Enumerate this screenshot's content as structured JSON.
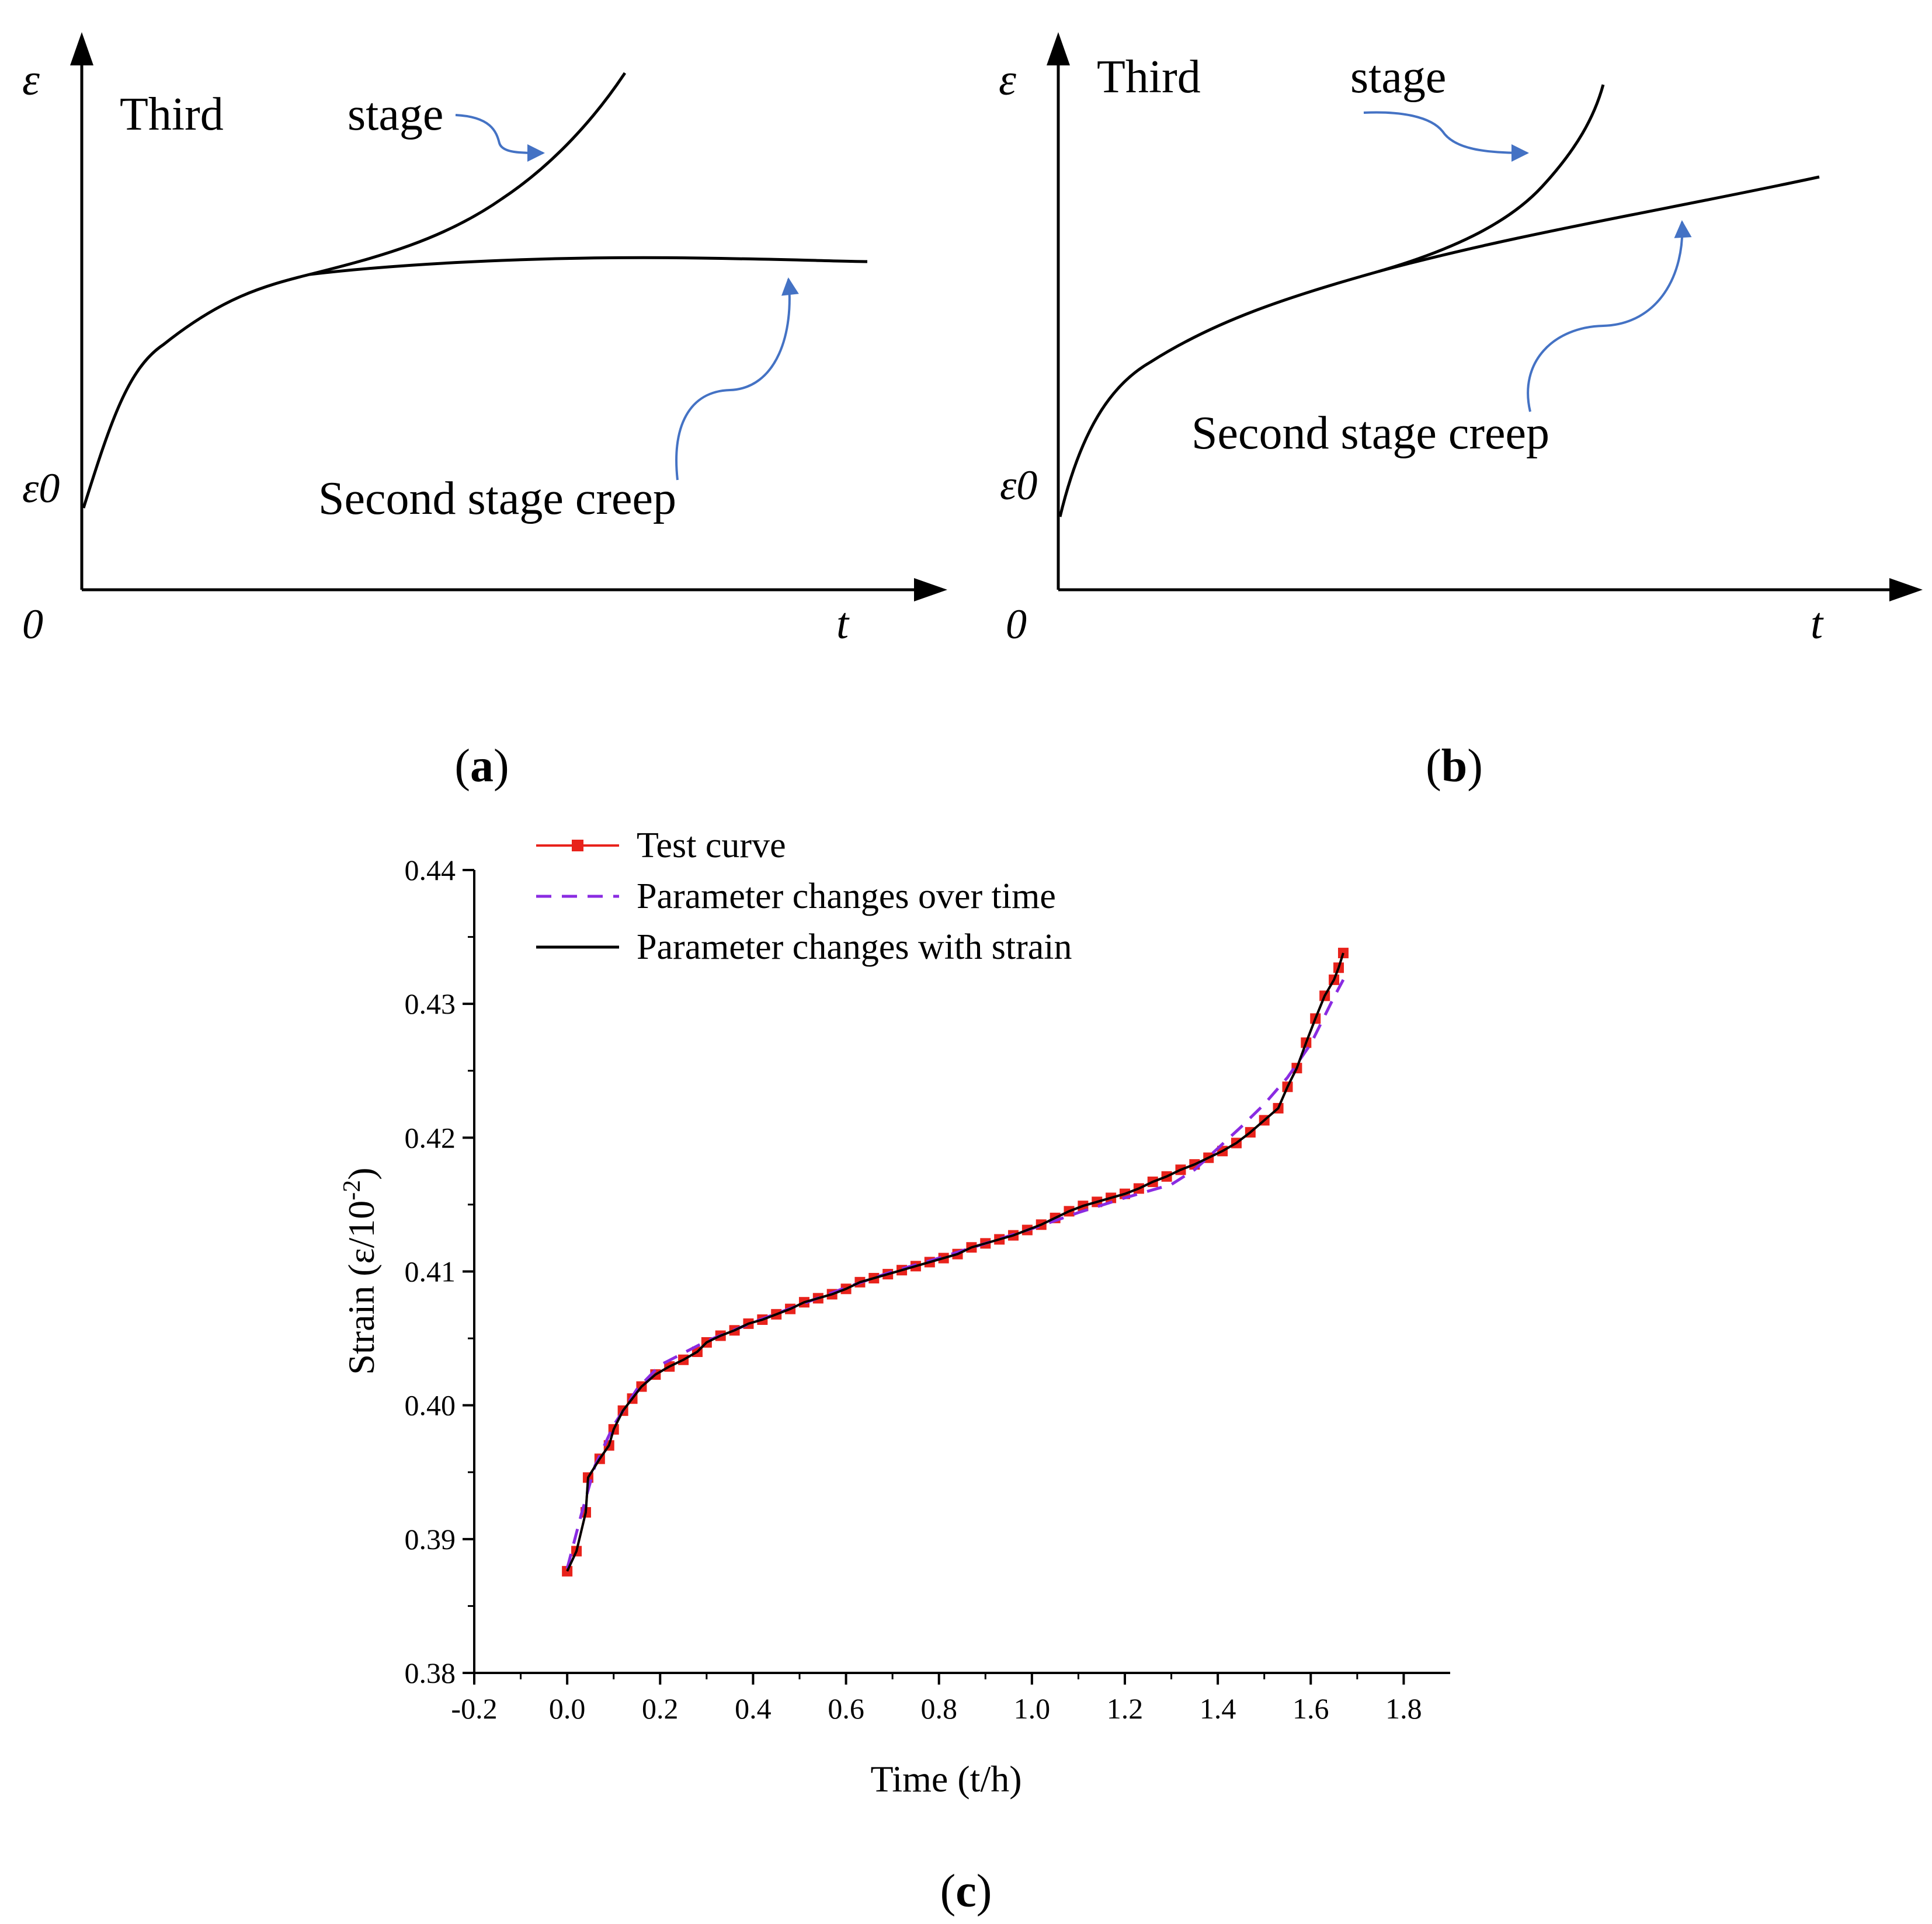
{
  "colors": {
    "axis": "#000000",
    "curve": "#000000",
    "arrow": "#4472C4",
    "test_curve": "#E8221B",
    "param_time": "#8A2BE2",
    "param_strain": "#000000"
  },
  "panel_a": {
    "caption_paren_open": "(",
    "caption_letter": "a",
    "caption_paren_close": ")",
    "y_symbol": "ε",
    "y0_symbol": "ε0",
    "origin": "0",
    "x_symbol": "t",
    "label_third": "Third",
    "label_stage": "stage",
    "label_second": "Second stage creep"
  },
  "panel_b": {
    "caption_paren_open": "(",
    "caption_letter": "b",
    "caption_paren_close": ")",
    "y_symbol": "ε",
    "y0_symbol": "ε0",
    "origin": "0",
    "x_symbol": "t",
    "label_third": "Third",
    "label_stage": "stage",
    "label_second": "Second stage creep"
  },
  "panel_c": {
    "caption_paren_open": "(",
    "caption_letter": "c",
    "caption_paren_close": ")"
  },
  "chart_data": [
    {
      "panel": "a",
      "type": "line",
      "title": "",
      "xlabel": "t",
      "ylabel": "ε",
      "series": [
        {
          "name": "Third stage",
          "description": "curve rises steeply after the second stage"
        },
        {
          "name": "Second stage creep",
          "description": "curve levels off to a near-constant strain"
        }
      ]
    },
    {
      "panel": "b",
      "type": "line",
      "title": "",
      "xlabel": "t",
      "ylabel": "ε",
      "series": [
        {
          "name": "Third stage",
          "description": "curve rises steeply"
        },
        {
          "name": "Second stage creep",
          "description": "curve keeps increasing at a constant rate"
        }
      ]
    },
    {
      "panel": "c",
      "type": "line",
      "title": "",
      "xlabel": "Time (t/h)",
      "ylabel_main": "Strain (ε/10",
      "ylabel_sup": "-2",
      "ylabel_end": ")",
      "xlim": [
        -0.2,
        1.9
      ],
      "ylim": [
        0.38,
        0.44
      ],
      "x_ticks": [
        -0.2,
        0.0,
        0.2,
        0.4,
        0.6,
        0.8,
        1.0,
        1.2,
        1.4,
        1.6,
        1.8
      ],
      "x_tick_labels": [
        "-0.2",
        "0.0",
        "0.2",
        "0.4",
        "0.6",
        "0.8",
        "1.0",
        "1.2",
        "1.4",
        "1.6",
        "1.8"
      ],
      "y_ticks": [
        0.38,
        0.39,
        0.4,
        0.41,
        0.42,
        0.43,
        0.44
      ],
      "y_tick_labels": [
        "0.38",
        "0.39",
        "0.40",
        "0.41",
        "0.42",
        "0.43",
        "0.44"
      ],
      "legend_position": "top-left",
      "series": [
        {
          "name": "Test curve",
          "style": "red line with square markers",
          "x": [
            0.0,
            0.02,
            0.04,
            0.045,
            0.07,
            0.09,
            0.1,
            0.12,
            0.14,
            0.16,
            0.19,
            0.22,
            0.25,
            0.28,
            0.3,
            0.33,
            0.36,
            0.39,
            0.42,
            0.45,
            0.48,
            0.51,
            0.54,
            0.57,
            0.6,
            0.63,
            0.66,
            0.69,
            0.72,
            0.75,
            0.78,
            0.81,
            0.84,
            0.87,
            0.9,
            0.93,
            0.96,
            0.99,
            1.02,
            1.05,
            1.08,
            1.11,
            1.14,
            1.17,
            1.2,
            1.23,
            1.26,
            1.29,
            1.32,
            1.35,
            1.38,
            1.41,
            1.44,
            1.47,
            1.5,
            1.53,
            1.55,
            1.57,
            1.59,
            1.61,
            1.63,
            1.65,
            1.66,
            1.67
          ],
          "y": [
            0.3876,
            0.3891,
            0.392,
            0.3946,
            0.396,
            0.397,
            0.3982,
            0.3996,
            0.4005,
            0.4014,
            0.4023,
            0.4029,
            0.4034,
            0.404,
            0.4047,
            0.4052,
            0.4056,
            0.4061,
            0.4064,
            0.4068,
            0.4072,
            0.4077,
            0.408,
            0.4083,
            0.4087,
            0.4092,
            0.4095,
            0.4098,
            0.4101,
            0.4104,
            0.4107,
            0.411,
            0.4113,
            0.4118,
            0.4121,
            0.4124,
            0.4127,
            0.4131,
            0.4135,
            0.414,
            0.4145,
            0.4149,
            0.4152,
            0.4155,
            0.4158,
            0.4162,
            0.4167,
            0.4171,
            0.4176,
            0.418,
            0.4185,
            0.419,
            0.4196,
            0.4204,
            0.4213,
            0.4222,
            0.4238,
            0.4252,
            0.4271,
            0.4289,
            0.4306,
            0.4318,
            0.4327,
            0.4338
          ]
        },
        {
          "name": "Parameter changes over time",
          "style": "purple dashed line",
          "x": [
            0.0,
            0.03,
            0.06,
            0.1,
            0.15,
            0.2,
            0.3,
            0.4,
            0.5,
            0.6,
            0.7,
            0.8,
            0.9,
            1.0,
            1.1,
            1.2,
            1.3,
            1.35,
            1.4,
            1.45,
            1.5,
            1.55,
            1.6,
            1.65,
            1.67
          ],
          "y": [
            0.3878,
            0.3918,
            0.3955,
            0.3985,
            0.4012,
            0.403,
            0.4048,
            0.4062,
            0.4075,
            0.4088,
            0.41,
            0.411,
            0.4121,
            0.4132,
            0.4144,
            0.4155,
            0.4165,
            0.4176,
            0.4192,
            0.4208,
            0.4225,
            0.4245,
            0.427,
            0.4305,
            0.4318
          ]
        },
        {
          "name": "Parameter changes with strain",
          "style": "black solid line",
          "x": [
            0.0,
            0.02,
            0.04,
            0.045,
            0.07,
            0.09,
            0.1,
            0.12,
            0.14,
            0.16,
            0.19,
            0.22,
            0.25,
            0.28,
            0.3,
            0.33,
            0.36,
            0.39,
            0.42,
            0.45,
            0.48,
            0.51,
            0.54,
            0.57,
            0.6,
            0.63,
            0.66,
            0.69,
            0.72,
            0.75,
            0.78,
            0.81,
            0.84,
            0.87,
            0.9,
            0.93,
            0.96,
            0.99,
            1.02,
            1.05,
            1.08,
            1.11,
            1.14,
            1.17,
            1.2,
            1.23,
            1.26,
            1.29,
            1.32,
            1.35,
            1.38,
            1.41,
            1.44,
            1.47,
            1.5,
            1.53,
            1.55,
            1.57,
            1.59,
            1.61,
            1.63,
            1.65,
            1.66,
            1.67
          ],
          "y": [
            0.3876,
            0.3891,
            0.392,
            0.3946,
            0.396,
            0.397,
            0.3982,
            0.3996,
            0.4005,
            0.4014,
            0.4023,
            0.4029,
            0.4034,
            0.404,
            0.4047,
            0.4052,
            0.4056,
            0.4061,
            0.4064,
            0.4068,
            0.4072,
            0.4077,
            0.408,
            0.4083,
            0.4087,
            0.4092,
            0.4095,
            0.4098,
            0.4101,
            0.4104,
            0.4107,
            0.411,
            0.4113,
            0.4118,
            0.4121,
            0.4124,
            0.4127,
            0.4131,
            0.4135,
            0.414,
            0.4145,
            0.4149,
            0.4152,
            0.4155,
            0.4158,
            0.4162,
            0.4167,
            0.4171,
            0.4176,
            0.418,
            0.4185,
            0.419,
            0.4196,
            0.4204,
            0.4213,
            0.4222,
            0.4238,
            0.4252,
            0.4271,
            0.4289,
            0.4306,
            0.4318,
            0.4327,
            0.4338
          ]
        }
      ]
    }
  ]
}
